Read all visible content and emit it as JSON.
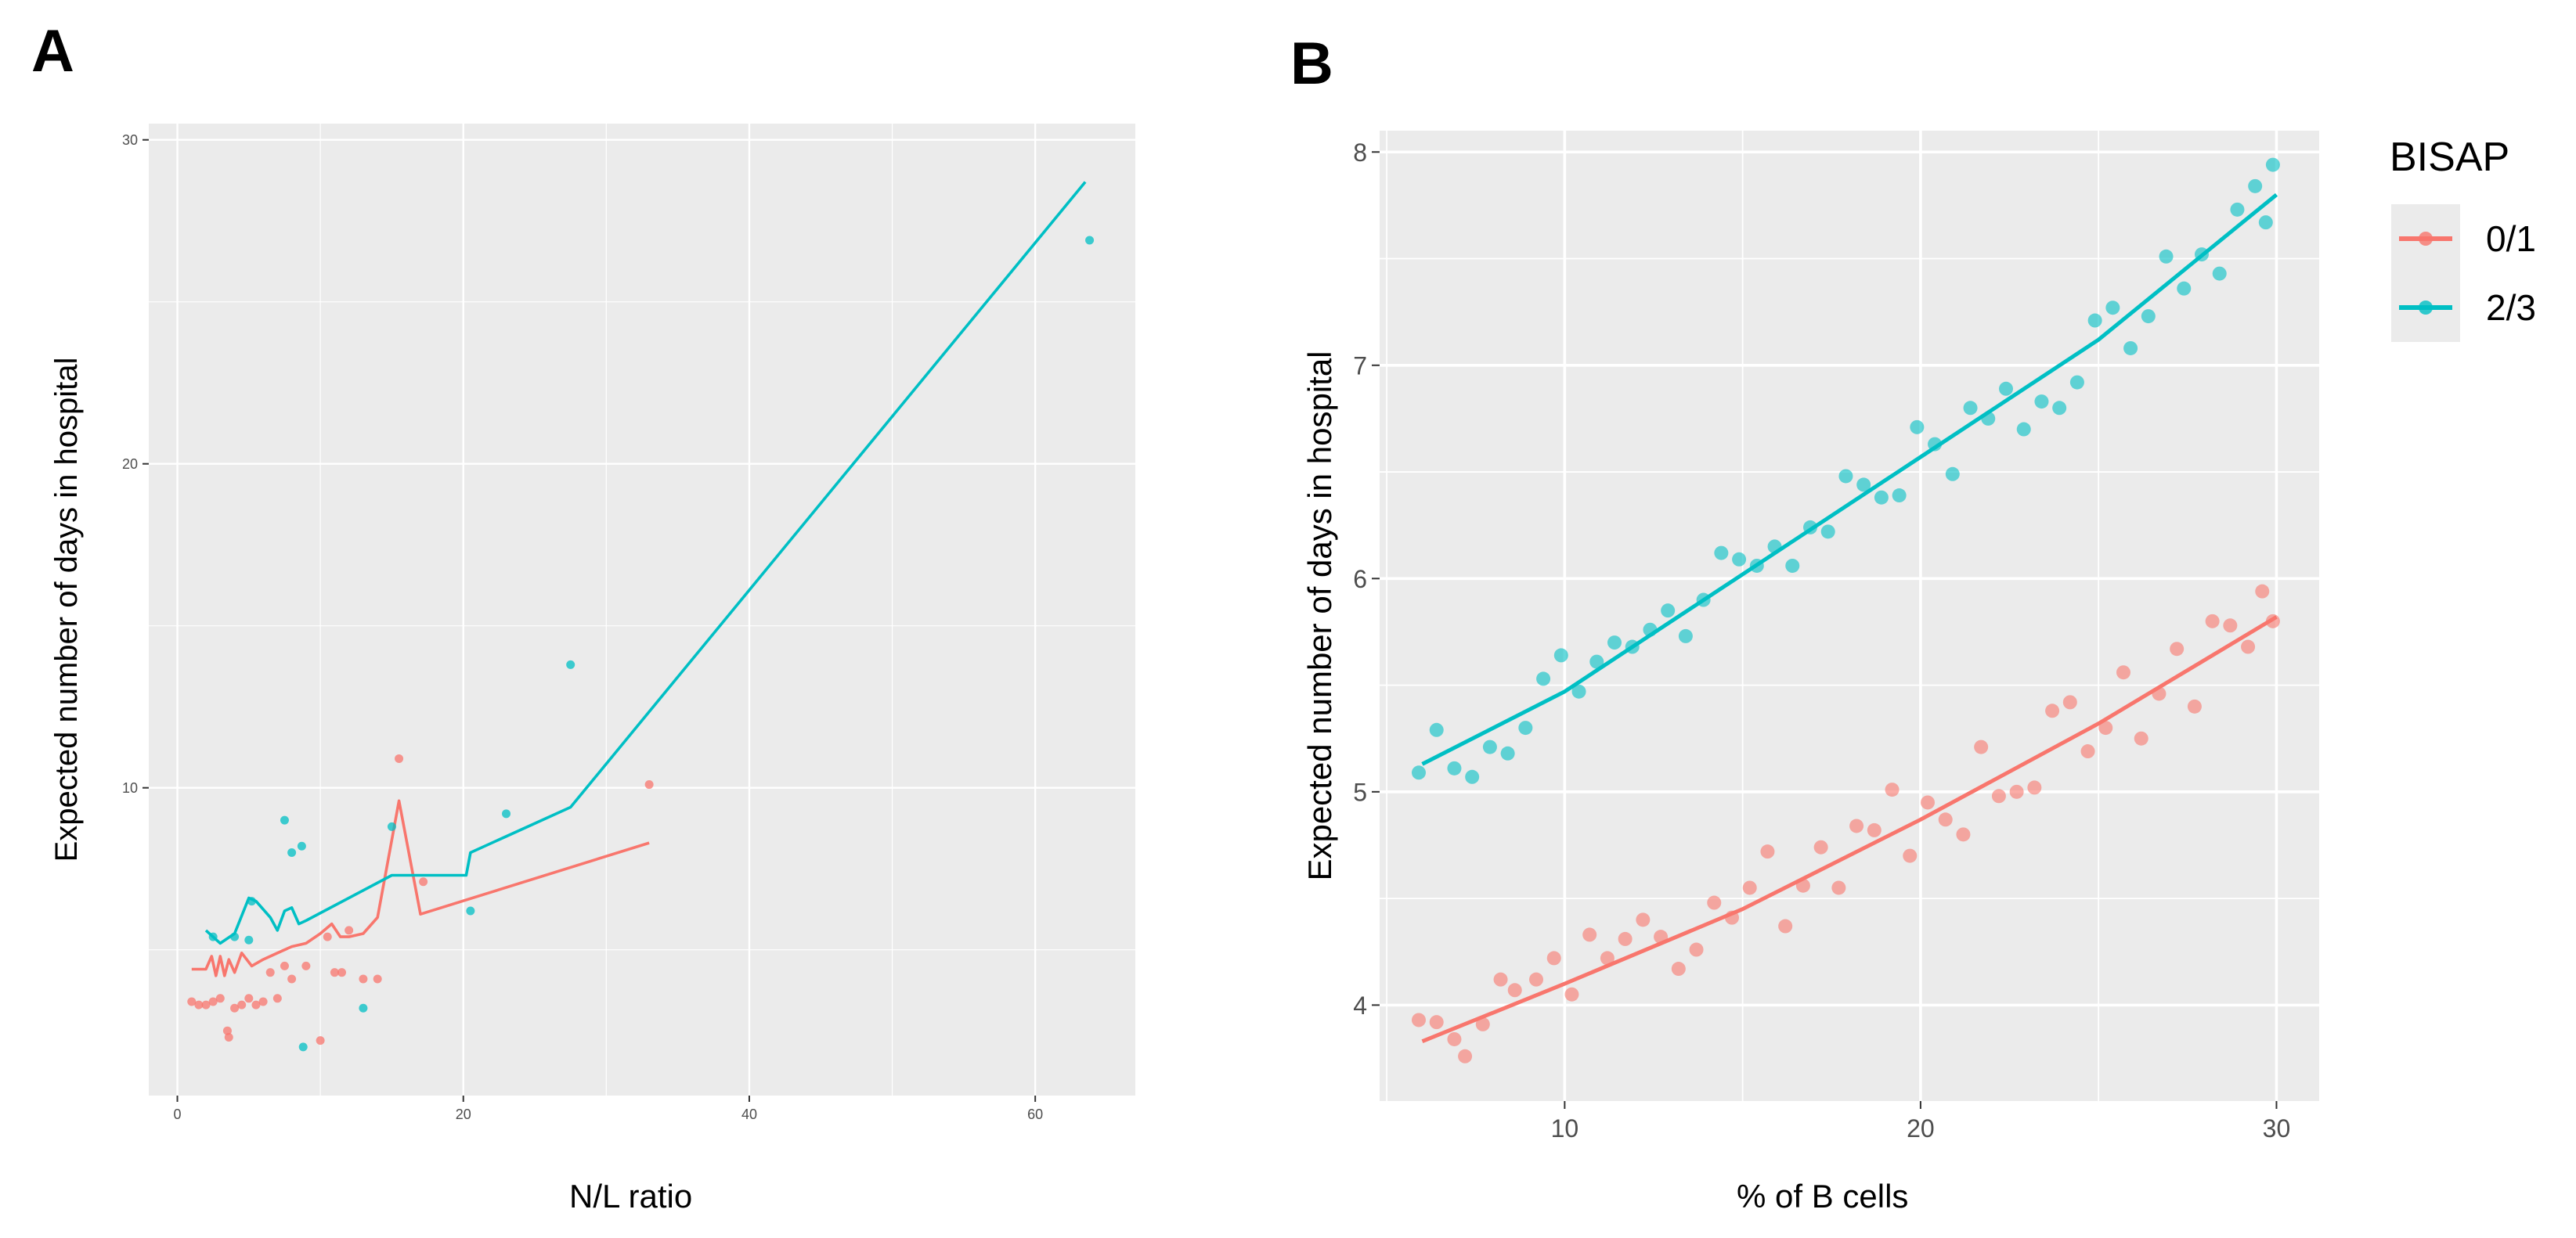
{
  "panels": {
    "a_label": "A",
    "b_label": "B"
  },
  "chart_data": [
    {
      "type": "line",
      "panel": "A",
      "title": "",
      "xlabel": "N/L ratio",
      "ylabel": "Expected number of days in hospital",
      "xlim": [
        -2,
        67
      ],
      "ylim": [
        0.5,
        30.5
      ],
      "xticks": [
        0,
        20,
        40,
        60
      ],
      "yticks": [
        10,
        20,
        30
      ],
      "grid": true,
      "legend": "none",
      "series": [
        {
          "name": "0/1",
          "color": "#F8766D",
          "line": {
            "x": [
              1,
              2,
              2.4,
              2.7,
              3.0,
              3.3,
              3.6,
              4.0,
              4.5,
              5.2,
              6,
              7,
              8,
              9,
              10,
              10.8,
              11.4,
              12.0,
              13,
              14,
              15.5,
              17,
              33
            ],
            "y": [
              4.4,
              4.4,
              4.8,
              4.2,
              4.8,
              4.2,
              4.7,
              4.3,
              4.9,
              4.5,
              4.7,
              4.9,
              5.1,
              5.2,
              5.5,
              5.8,
              5.4,
              5.4,
              5.5,
              6.0,
              9.6,
              6.1,
              8.3
            ]
          },
          "points": {
            "x": [
              1,
              1.5,
              2,
              2.5,
              3,
              3.5,
              3.6,
              4,
              4.5,
              5,
              5.5,
              6,
              6.5,
              7,
              7.5,
              8,
              9,
              10,
              10.5,
              11,
              11.5,
              12,
              13,
              14,
              15.5,
              17.2,
              33
            ],
            "y": [
              3.4,
              3.3,
              3.3,
              3.4,
              3.5,
              2.5,
              2.3,
              3.2,
              3.3,
              3.5,
              3.3,
              3.4,
              4.3,
              3.5,
              4.5,
              4.1,
              4.5,
              2.2,
              5.4,
              4.3,
              4.3,
              5.6,
              4.1,
              4.1,
              10.9,
              7.1,
              10.1
            ]
          }
        },
        {
          "name": "2/3",
          "color": "#00BFC4",
          "line": {
            "x": [
              2,
              3,
              4,
              5,
              5.5,
              6.5,
              7,
              7.5,
              8.0,
              8.5,
              9.0,
              15,
              20.2,
              20.5,
              23,
              27.5,
              63.5
            ],
            "y": [
              5.6,
              5.2,
              5.5,
              6.6,
              6.5,
              6.0,
              5.6,
              6.2,
              6.3,
              5.8,
              5.9,
              7.3,
              7.3,
              8.0,
              8.5,
              9.4,
              28.7
            ]
          },
          "points": {
            "x": [
              2.5,
              4,
              5,
              5.2,
              7.5,
              8,
              8.7,
              8.8,
              13,
              15,
              20.5,
              23,
              27.5,
              63.8
            ],
            "y": [
              5.4,
              5.4,
              5.3,
              6.5,
              9.0,
              8.0,
              8.2,
              2.0,
              3.2,
              8.8,
              6.2,
              9.2,
              13.8,
              26.9
            ]
          }
        }
      ]
    },
    {
      "type": "line",
      "panel": "B",
      "title": "",
      "xlabel": "% of B cells",
      "ylabel": "Expected number of days in hospital",
      "xlim": [
        4.8,
        31.2
      ],
      "ylim": [
        3.55,
        8.1
      ],
      "xticks": [
        10,
        20,
        30
      ],
      "yticks": [
        4,
        5,
        6,
        7,
        8
      ],
      "grid": true,
      "legend": "right",
      "legend_title": "BISAP",
      "series": [
        {
          "name": "0/1",
          "color": "#F8766D",
          "line": {
            "x": [
              6,
              10,
              15,
              20,
              25,
              30
            ],
            "y": [
              3.83,
              4.1,
              4.45,
              4.87,
              5.32,
              5.82
            ]
          },
          "points": {
            "x": [
              5.9,
              6.4,
              6.9,
              7.2,
              7.7,
              8.2,
              8.6,
              9.2,
              9.7,
              10.2,
              10.7,
              11.2,
              11.7,
              12.2,
              12.7,
              13.2,
              13.7,
              14.2,
              14.7,
              15.2,
              15.7,
              16.2,
              16.7,
              17.2,
              17.7,
              18.2,
              18.7,
              19.2,
              19.7,
              20.2,
              20.7,
              21.2,
              21.7,
              22.2,
              22.7,
              23.2,
              23.7,
              24.2,
              24.7,
              25.2,
              25.7,
              26.2,
              26.7,
              27.2,
              27.7,
              28.2,
              28.7,
              29.2,
              29.6,
              29.9
            ],
            "y": [
              3.93,
              3.92,
              3.84,
              3.76,
              3.91,
              4.12,
              4.07,
              4.12,
              4.22,
              4.05,
              4.33,
              4.22,
              4.31,
              4.4,
              4.32,
              4.17,
              4.26,
              4.48,
              4.41,
              4.55,
              4.72,
              4.37,
              4.56,
              4.74,
              4.55,
              4.84,
              4.82,
              5.01,
              4.7,
              4.95,
              4.87,
              4.8,
              5.21,
              4.98,
              5.0,
              5.02,
              5.38,
              5.42,
              5.19,
              5.3,
              5.56,
              5.25,
              5.46,
              5.67,
              5.4,
              5.8,
              5.78,
              5.68,
              5.94,
              5.8
            ]
          }
        },
        {
          "name": "2/3",
          "color": "#00BFC4",
          "line": {
            "x": [
              6,
              10,
              15,
              20,
              25,
              30
            ],
            "y": [
              5.13,
              5.47,
              6.02,
              6.57,
              7.12,
              7.8
            ]
          },
          "points": {
            "x": [
              5.9,
              6.4,
              6.9,
              7.4,
              7.9,
              8.4,
              8.9,
              9.4,
              9.9,
              10.4,
              10.9,
              11.4,
              11.9,
              12.4,
              12.9,
              13.4,
              13.9,
              14.4,
              14.9,
              15.4,
              15.9,
              16.4,
              16.9,
              17.4,
              17.9,
              18.4,
              18.9,
              19.4,
              19.9,
              20.4,
              20.9,
              21.4,
              21.9,
              22.4,
              22.9,
              23.4,
              23.9,
              24.4,
              24.9,
              25.4,
              25.9,
              26.4,
              26.9,
              27.4,
              27.9,
              28.4,
              28.9,
              29.4,
              29.7,
              29.9
            ],
            "y": [
              5.09,
              5.29,
              5.11,
              5.07,
              5.21,
              5.18,
              5.3,
              5.53,
              5.64,
              5.47,
              5.61,
              5.7,
              5.68,
              5.76,
              5.85,
              5.73,
              5.9,
              6.12,
              6.09,
              6.06,
              6.15,
              6.06,
              6.24,
              6.22,
              6.48,
              6.44,
              6.38,
              6.39,
              6.71,
              6.63,
              6.49,
              6.8,
              6.75,
              6.89,
              6.7,
              6.83,
              6.8,
              6.92,
              7.21,
              7.27,
              7.08,
              7.23,
              7.51,
              7.36,
              7.52,
              7.43,
              7.73,
              7.84,
              7.67,
              7.94
            ]
          }
        }
      ]
    }
  ]
}
